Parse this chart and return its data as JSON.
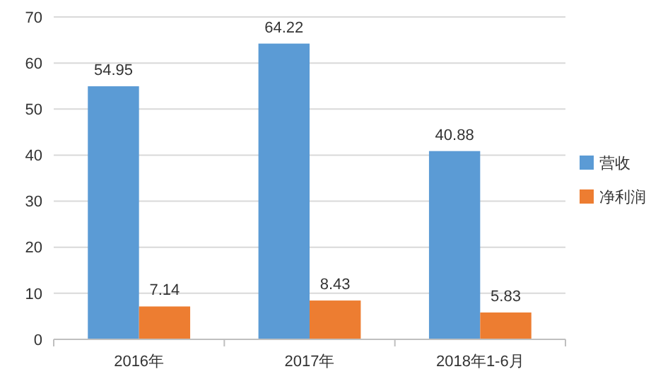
{
  "chart_data": {
    "type": "bar",
    "categories": [
      "2016年",
      "2017年",
      "2018年1-6月"
    ],
    "series": [
      {
        "name": "营收",
        "color": "#5b9bd5",
        "values": [
          54.95,
          64.22,
          40.88
        ]
      },
      {
        "name": "净利润",
        "color": "#ed7d31",
        "values": [
          7.14,
          8.43,
          5.83
        ]
      }
    ],
    "ylim": [
      0,
      70
    ],
    "yticks": [
      0,
      10,
      20,
      30,
      40,
      50,
      60,
      70
    ],
    "grid": "y",
    "legend": "right",
    "data_labels": true
  }
}
